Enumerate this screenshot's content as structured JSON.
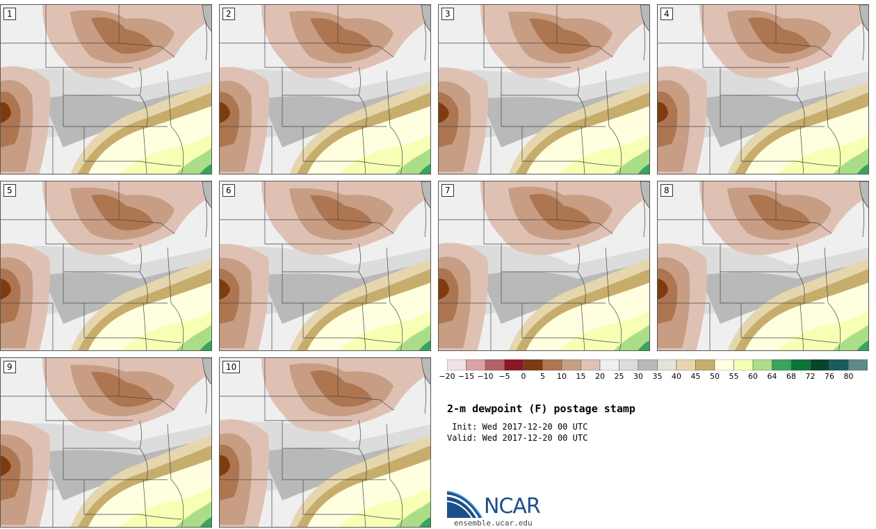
{
  "stamps": [
    {
      "label": "1"
    },
    {
      "label": "2"
    },
    {
      "label": "3"
    },
    {
      "label": "4"
    },
    {
      "label": "5"
    },
    {
      "label": "6"
    },
    {
      "label": "7"
    },
    {
      "label": "8"
    },
    {
      "label": "9"
    },
    {
      "label": "10"
    }
  ],
  "colorbar": {
    "colors": [
      "#f1e3e3",
      "#d9a3a6",
      "#b46166",
      "#8b1724",
      "#7d3b10",
      "#ad7651",
      "#c79d84",
      "#dfc1b3",
      "#efefef",
      "#dcdcdc",
      "#b9b9b9",
      "#e3e3d6",
      "#e6d6ae",
      "#c7ad6c",
      "#ffffe0",
      "#f6ffb3",
      "#aadd88",
      "#3aa35c",
      "#0a7337",
      "#06452a",
      "#1a5b5e",
      "#5b8a89"
    ],
    "labels": [
      "−20",
      "−15",
      "−10",
      "−5",
      "0",
      "5",
      "10",
      "15",
      "20",
      "25",
      "30",
      "35",
      "40",
      "45",
      "50",
      "55",
      "60",
      "64",
      "68",
      "72",
      "76",
      "80"
    ]
  },
  "title": "2-m dewpoint (F) postage stamp",
  "init_line": " Init: Wed 2017-12-20 00 UTC",
  "valid_line": "Valid: Wed 2017-12-20 00 UTC",
  "logo": {
    "word": "NCAR",
    "url": "ensemble.ucar.edu"
  }
}
